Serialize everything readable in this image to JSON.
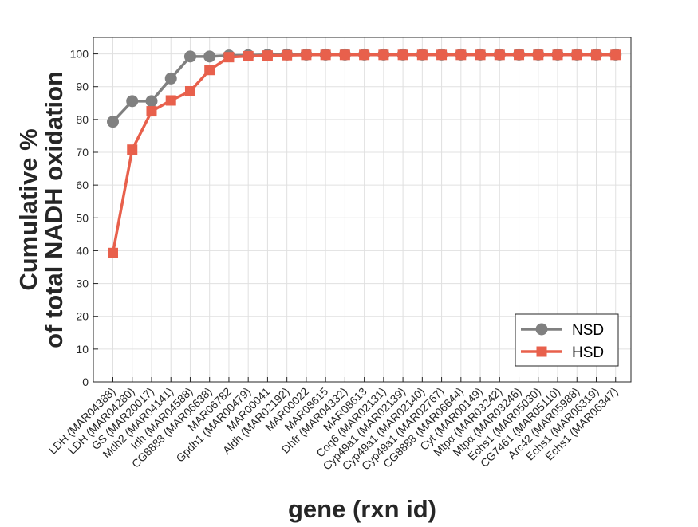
{
  "chart_data": {
    "type": "line",
    "xlabel": "gene (rxn id)",
    "ylabel_line1": "Cumulative %",
    "ylabel_line2": "of total NADH oxidation",
    "ylim": [
      0,
      105
    ],
    "yticks": [
      0,
      10,
      20,
      30,
      40,
      50,
      60,
      70,
      80,
      90,
      100
    ],
    "grid": true,
    "legend_position": "bottom-right",
    "categories": [
      "LDH (MAR04388)",
      "LDH (MAR04280)",
      "GS (MAR20017)",
      "Mdh2 (MAR04141)",
      "Idh (MAR04588)",
      "CG8888 (MAR06638)",
      "MAR06782",
      "Gpdh1 (MAR00479)",
      "MAR00041",
      "Aldh (MAR02192)",
      "MAR00022",
      "MAR08615",
      "Dhfr (MAR04332)",
      "MAR08613",
      "Coq6 (MAR02131)",
      "Cyp49a1 (MAR02139)",
      "Cyp49a1 (MAR02140)",
      "Cyp49a1 (MAR02767)",
      "CG8888 (MAR06644)",
      "Cyt (MAR00149)",
      "Mtpα (MAR03242)",
      "Mtpα (MAR03246)",
      "Echs1 (MAR05030)",
      "CG7461 (MAR05110)",
      "Arc42 (MAR05988)",
      "Echs1 (MAR06319)",
      "Echs1 (MAR06347)"
    ],
    "series": [
      {
        "name": "NSD",
        "color": "#808080",
        "marker": "circle",
        "values": [
          79.3,
          85.6,
          85.6,
          92.5,
          99.2,
          99.2,
          99.5,
          99.6,
          99.7,
          99.8,
          99.8,
          99.8,
          99.8,
          99.8,
          99.8,
          99.8,
          99.8,
          99.8,
          99.8,
          99.8,
          99.8,
          99.8,
          99.8,
          99.8,
          99.8,
          99.8,
          99.8
        ]
      },
      {
        "name": "HSD",
        "color": "#E8604C",
        "marker": "square",
        "values": [
          39.3,
          70.8,
          82.5,
          85.8,
          88.6,
          95.1,
          99.0,
          99.3,
          99.5,
          99.6,
          99.7,
          99.7,
          99.7,
          99.7,
          99.7,
          99.7,
          99.7,
          99.7,
          99.7,
          99.7,
          99.7,
          99.7,
          99.7,
          99.7,
          99.7,
          99.7,
          99.7
        ]
      }
    ]
  }
}
